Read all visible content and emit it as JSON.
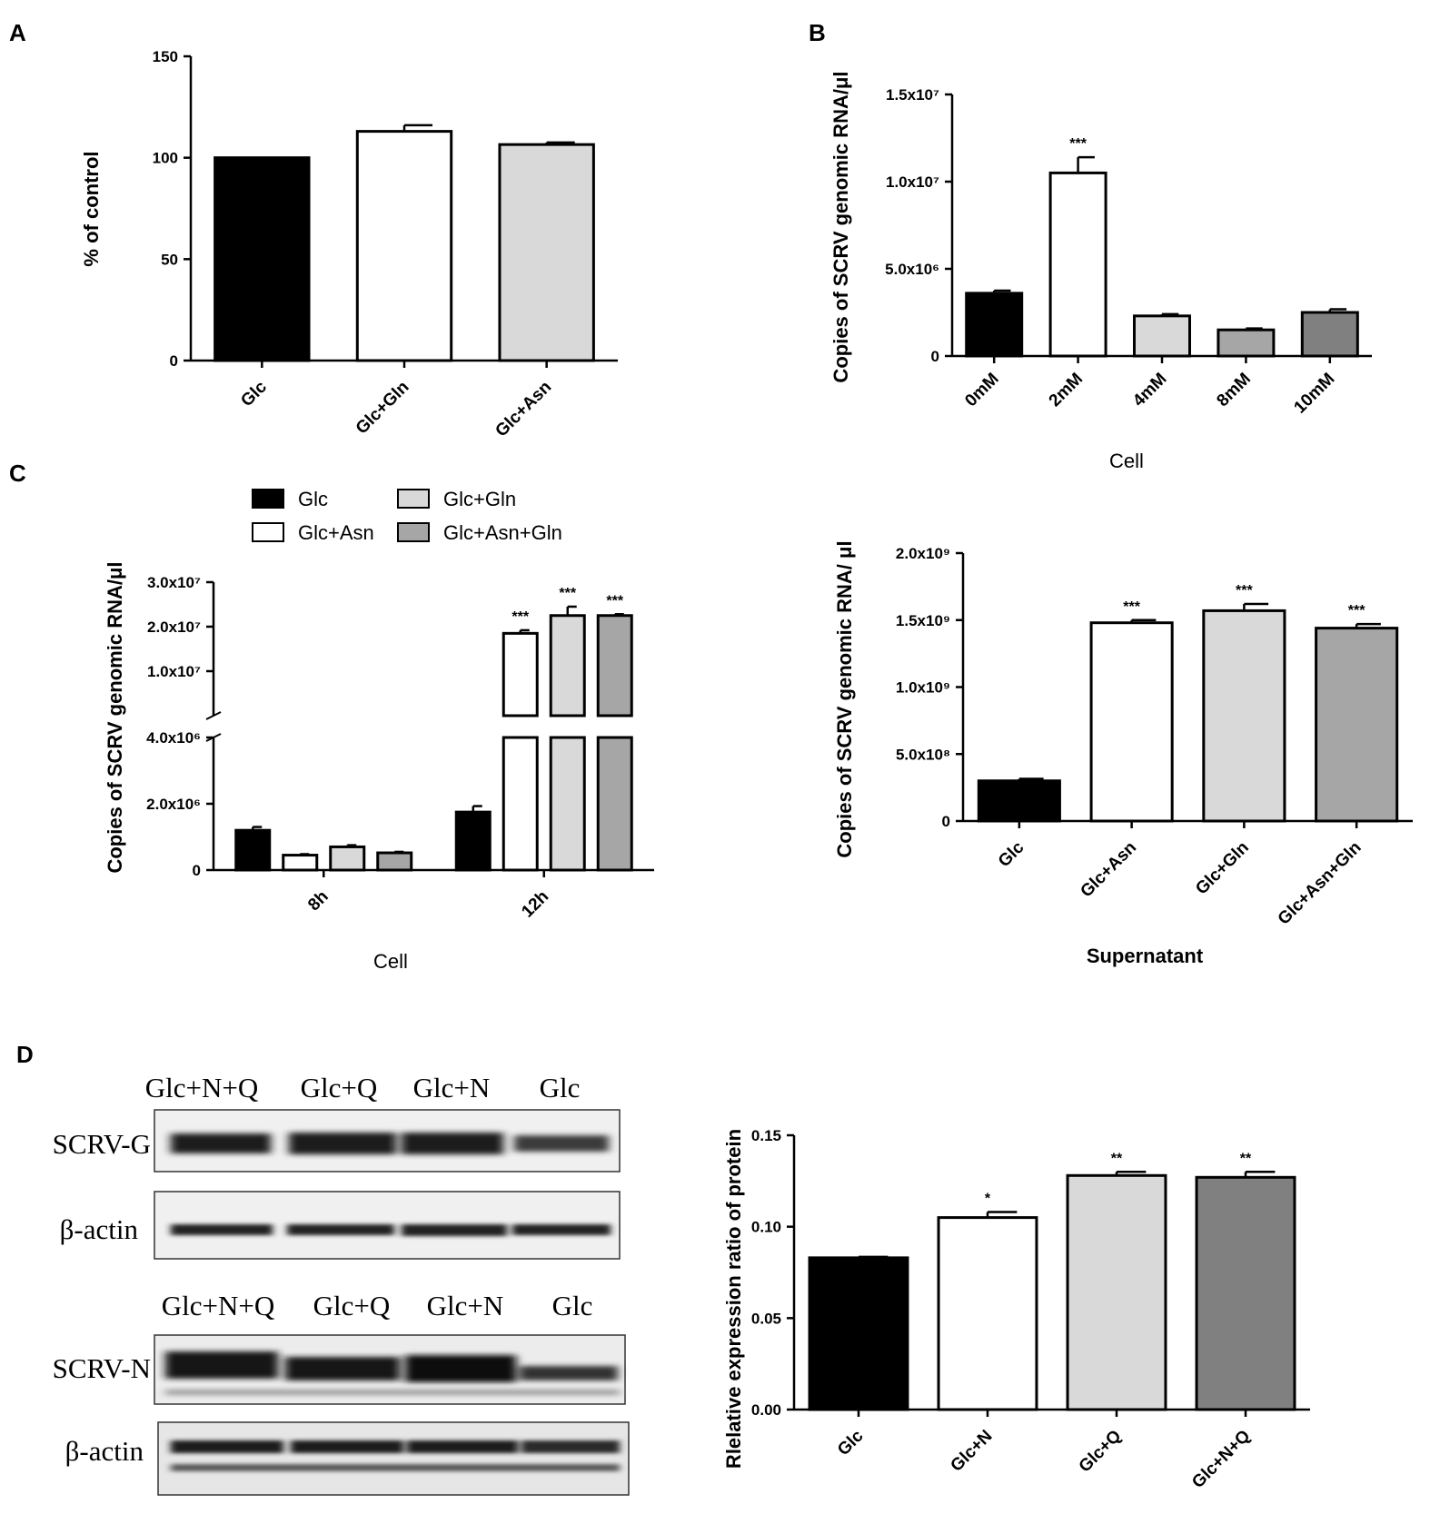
{
  "panels": {
    "A": "A",
    "B": "B",
    "C": "C",
    "D": "D"
  },
  "chart_data": [
    {
      "id": "A",
      "type": "bar",
      "categories": [
        "Glc",
        "Glc+Gln",
        "Glc+Asn"
      ],
      "values": [
        100,
        113,
        106.5
      ],
      "errors": [
        0,
        3,
        1
      ],
      "colors": [
        "#000000",
        "#ffffff",
        "#d9d9d9"
      ],
      "ylabel": "% of control",
      "ylim": [
        0,
        150
      ],
      "yticks": [
        {
          "v": 0,
          "t": "0"
        },
        {
          "v": 50,
          "t": "50"
        },
        {
          "v": 100,
          "t": "100"
        },
        {
          "v": 150,
          "t": "150"
        }
      ],
      "significance": [
        "",
        "",
        ""
      ],
      "xlabel": ""
    },
    {
      "id": "B-cell",
      "type": "bar",
      "categories": [
        "0mM",
        "2mM",
        "4mM",
        "8mM",
        "10mM"
      ],
      "values": [
        3600000,
        10500000,
        2300000,
        1500000,
        2500000
      ],
      "errors": [
        150000,
        900000,
        100000,
        80000,
        180000
      ],
      "colors": [
        "#000000",
        "#ffffff",
        "#d9d9d9",
        "#a6a6a6",
        "#808080"
      ],
      "ylabel": "Copies of SCRV genomic RNA/μl",
      "ylim": [
        0,
        15000000
      ],
      "yticks": [
        {
          "v": 0,
          "t": "0"
        },
        {
          "v": 5000000,
          "t": "5.0x10⁶"
        },
        {
          "v": 10000000,
          "t": "1.0x10⁷"
        },
        {
          "v": 15000000,
          "t": "1.5x10⁷"
        }
      ],
      "significance": [
        "",
        "***",
        "",
        "",
        ""
      ],
      "xlabel": "Cell"
    },
    {
      "id": "C-cell",
      "type": "bar",
      "groups": [
        "8h",
        "12h"
      ],
      "series": [
        {
          "name": "Glc",
          "color": "#000000",
          "values": [
            1200000,
            1750000
          ],
          "errors": [
            100000,
            180000
          ]
        },
        {
          "name": "Glc+Asn",
          "color": "#ffffff",
          "values": [
            450000,
            18500000
          ],
          "errors": [
            30000,
            700000
          ]
        },
        {
          "name": "Glc+Gln",
          "color": "#d9d9d9",
          "values": [
            700000,
            22500000
          ],
          "errors": [
            50000,
            2000000
          ]
        },
        {
          "name": "Glc+Asn+Gln",
          "color": "#a6a6a6",
          "values": [
            520000,
            22500000
          ],
          "errors": [
            30000,
            300000
          ]
        }
      ],
      "ylabel": "Copies of SCRV genomic RNA/μl",
      "axis_break": {
        "lower": [
          0,
          4000000
        ],
        "upper": [
          0,
          30000000
        ]
      },
      "yticks_lower": [
        {
          "v": 0,
          "t": "0"
        },
        {
          "v": 2000000,
          "t": "2.0x10⁶"
        },
        {
          "v": 4000000,
          "t": "4.0x10⁶"
        }
      ],
      "yticks_upper": [
        {
          "v": 10000000,
          "t": "1.0x10⁷"
        },
        {
          "v": 20000000,
          "t": "2.0x10⁷"
        },
        {
          "v": 30000000,
          "t": "3.0x10⁷"
        }
      ],
      "significance": [
        [
          "",
          "",
          "",
          ""
        ],
        [
          "",
          "***",
          "***",
          "***"
        ]
      ],
      "xlabel": "Cell"
    },
    {
      "id": "C-supernatant",
      "type": "bar",
      "categories": [
        "Glc",
        "Glc+Asn",
        "Glc+Gln",
        "Glc+Asn+Gln"
      ],
      "values": [
        300000000,
        1480000000,
        1570000000,
        1440000000
      ],
      "errors": [
        15000000,
        20000000,
        50000000,
        30000000
      ],
      "colors": [
        "#000000",
        "#ffffff",
        "#d9d9d9",
        "#a6a6a6"
      ],
      "ylabel": "Copies of SCRV genomic RNA/ μl",
      "ylim": [
        0,
        2000000000
      ],
      "yticks": [
        {
          "v": 0,
          "t": "0"
        },
        {
          "v": 500000000,
          "t": "5.0x10⁸"
        },
        {
          "v": 1000000000,
          "t": "1.0x10⁹"
        },
        {
          "v": 1500000000,
          "t": "1.5x10⁹"
        },
        {
          "v": 2000000000,
          "t": "2.0x10⁹"
        }
      ],
      "significance": [
        "",
        "***",
        "***",
        "***"
      ],
      "xlabel": "Supernatant"
    },
    {
      "id": "D-quant",
      "type": "bar",
      "categories": [
        "Glc",
        "Glc+N",
        "Glc+Q",
        "Glc+N+Q"
      ],
      "values": [
        0.083,
        0.105,
        0.128,
        0.127
      ],
      "errors": [
        0.0005,
        0.003,
        0.002,
        0.003
      ],
      "colors": [
        "#000000",
        "#ffffff",
        "#d9d9d9",
        "#808080"
      ],
      "ylabel": "Rlelative  expression ratio of protein",
      "ylim": [
        0,
        0.15
      ],
      "yticks": [
        {
          "v": 0,
          "t": "0.00"
        },
        {
          "v": 0.05,
          "t": "0.05"
        },
        {
          "v": 0.1,
          "t": "0.10"
        },
        {
          "v": 0.15,
          "t": "0.15"
        }
      ],
      "significance": [
        "",
        "*",
        "**",
        "**"
      ],
      "xlabel": ""
    }
  ],
  "blot": {
    "lane_labels_top": [
      "Glc+N+Q",
      "Glc+Q",
      "Glc+N",
      "Glc"
    ],
    "lane_labels_bottom": [
      "Glc+N+Q",
      "Glc+Q",
      "Glc+N",
      "Glc"
    ],
    "rows": [
      "SCRV-G",
      "β-actin",
      "SCRV-N",
      "β-actin"
    ]
  }
}
